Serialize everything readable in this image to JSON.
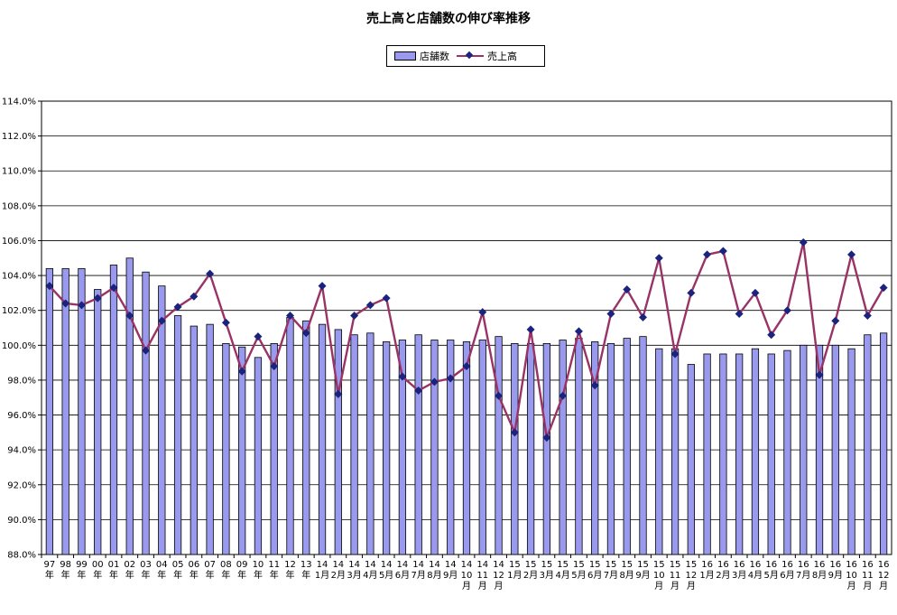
{
  "chart_data": {
    "type": "bar",
    "title": "売上高と店舗数の伸び率推移",
    "legend_position": "top-center",
    "grid": true,
    "ylim": [
      88,
      114
    ],
    "yticks": [
      "88.0%",
      "90.0%",
      "92.0%",
      "94.0%",
      "96.0%",
      "98.0%",
      "100.0%",
      "102.0%",
      "104.0%",
      "106.0%",
      "108.0%",
      "110.0%",
      "112.0%",
      "114.0%"
    ],
    "categories": [
      [
        "97",
        "年"
      ],
      [
        "98",
        "年"
      ],
      [
        "99",
        "年"
      ],
      [
        "00",
        "年"
      ],
      [
        "01",
        "年"
      ],
      [
        "02",
        "年"
      ],
      [
        "03",
        "年"
      ],
      [
        "04",
        "年"
      ],
      [
        "05",
        "年"
      ],
      [
        "06",
        "年"
      ],
      [
        "07",
        "年"
      ],
      [
        "08",
        "年"
      ],
      [
        "09",
        "年"
      ],
      [
        "10",
        "年"
      ],
      [
        "11",
        "年"
      ],
      [
        "12",
        "年"
      ],
      [
        "13",
        "年"
      ],
      [
        "14",
        "1月"
      ],
      [
        "14",
        "2月"
      ],
      [
        "14",
        "3月"
      ],
      [
        "14",
        "4月"
      ],
      [
        "14",
        "5月"
      ],
      [
        "14",
        "6月"
      ],
      [
        "14",
        "7月"
      ],
      [
        "14",
        "8月"
      ],
      [
        "14",
        "9月"
      ],
      [
        "14",
        "10",
        "月"
      ],
      [
        "14",
        "11",
        "月"
      ],
      [
        "14",
        "12",
        "月"
      ],
      [
        "15",
        "1月"
      ],
      [
        "15",
        "2月"
      ],
      [
        "15",
        "3月"
      ],
      [
        "15",
        "4月"
      ],
      [
        "15",
        "5月"
      ],
      [
        "15",
        "6月"
      ],
      [
        "15",
        "7月"
      ],
      [
        "15",
        "8月"
      ],
      [
        "15",
        "9月"
      ],
      [
        "15",
        "10",
        "月"
      ],
      [
        "15",
        "11",
        "月"
      ],
      [
        "15",
        "12",
        "月"
      ],
      [
        "16",
        "1月"
      ],
      [
        "16",
        "2月"
      ],
      [
        "16",
        "3月"
      ],
      [
        "16",
        "4月"
      ],
      [
        "16",
        "5月"
      ],
      [
        "16",
        "6月"
      ],
      [
        "16",
        "7月"
      ],
      [
        "16",
        "8月"
      ],
      [
        "16",
        "9月"
      ],
      [
        "16",
        "10",
        "月"
      ],
      [
        "16",
        "11",
        "月"
      ],
      [
        "16",
        "12",
        "月"
      ]
    ],
    "series": [
      {
        "name": "店舗数",
        "type": "bar",
        "color": "#9999ee",
        "values": [
          104.4,
          104.4,
          104.4,
          103.2,
          104.6,
          105.0,
          104.2,
          103.4,
          101.7,
          101.1,
          101.2,
          100.1,
          99.9,
          99.3,
          100.1,
          101.6,
          101.4,
          101.2,
          100.9,
          100.6,
          100.7,
          100.2,
          100.3,
          100.6,
          100.3,
          100.3,
          100.2,
          100.3,
          100.5,
          100.1,
          100.1,
          100.1,
          100.3,
          100.4,
          100.2,
          100.1,
          100.4,
          100.5,
          99.8,
          99.8,
          98.9,
          99.5,
          99.5,
          99.5,
          99.8,
          99.5,
          99.7,
          100.0,
          100.0,
          100.0,
          99.8,
          100.6,
          100.7
        ]
      },
      {
        "name": "売上高",
        "type": "line",
        "color": "#993366",
        "marker_color": "#1a237e",
        "values": [
          103.4,
          102.4,
          102.3,
          102.7,
          103.3,
          101.7,
          99.7,
          101.4,
          102.2,
          102.8,
          104.1,
          101.3,
          98.5,
          100.5,
          98.8,
          101.7,
          100.7,
          103.4,
          97.2,
          101.7,
          102.3,
          102.7,
          98.2,
          97.4,
          97.9,
          98.1,
          98.8,
          101.9,
          97.1,
          95.0,
          100.9,
          94.7,
          97.1,
          100.8,
          97.7,
          101.8,
          103.2,
          101.6,
          105.0,
          99.5,
          103.0,
          105.2,
          105.4,
          101.8,
          103.0,
          100.6,
          102.0,
          105.9,
          98.3,
          101.4,
          105.2,
          101.7,
          103.3
        ]
      }
    ]
  }
}
